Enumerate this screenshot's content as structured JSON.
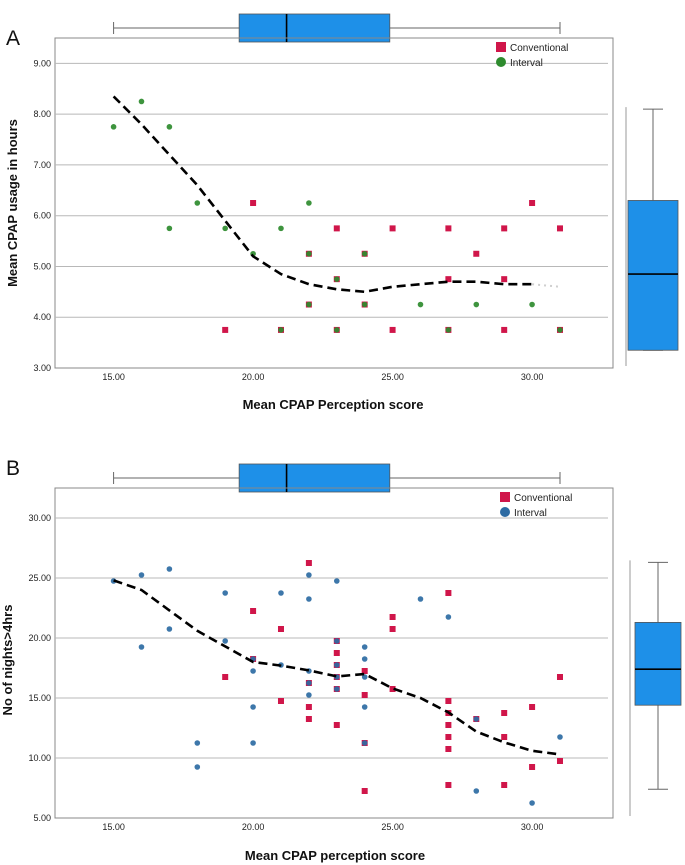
{
  "chart_data": [
    {
      "type": "scatter",
      "panel": "A",
      "xlabel": "Mean CPAP Perception score",
      "ylabel": "Mean CPAP usage in hours",
      "xlim": [
        12.9,
        32.9
      ],
      "ylim": [
        3.0,
        9.5
      ],
      "xticks": [
        "15.00",
        "20.00",
        "25.00",
        "30.00"
      ],
      "yticks": [
        "3.00",
        "4.00",
        "5.00",
        "6.00",
        "7.00",
        "8.00",
        "9.00"
      ],
      "grid": "horizontal",
      "legend_position": "top-right",
      "colors": {
        "Conventional": "#d0164a",
        "Interval": "#2e8b2e",
        "fit": "#000000",
        "box": "#1e90e8"
      },
      "series": [
        {
          "name": "Conventional",
          "marker": "square",
          "points": [
            [
              19,
              3.75
            ],
            [
              20,
              6.25
            ],
            [
              21,
              3.75
            ],
            [
              22,
              4.25
            ],
            [
              22,
              5.25
            ],
            [
              23,
              3.75
            ],
            [
              23,
              4.75
            ],
            [
              23,
              5.75
            ],
            [
              24,
              4.25
            ],
            [
              24,
              5.25
            ],
            [
              25,
              3.75
            ],
            [
              25,
              5.75
            ],
            [
              27,
              3.75
            ],
            [
              27,
              4.75
            ],
            [
              27,
              5.75
            ],
            [
              28,
              5.25
            ],
            [
              29,
              3.75
            ],
            [
              29,
              4.75
            ],
            [
              29,
              5.75
            ],
            [
              30,
              6.25
            ],
            [
              31,
              3.75
            ],
            [
              31,
              5.75
            ]
          ]
        },
        {
          "name": "Interval",
          "marker": "circle",
          "points": [
            [
              15,
              7.75
            ],
            [
              16,
              8.25
            ],
            [
              17,
              7.75
            ],
            [
              17,
              5.75
            ],
            [
              18,
              6.25
            ],
            [
              19,
              5.75
            ],
            [
              20,
              5.25
            ],
            [
              21,
              5.75
            ],
            [
              21,
              3.75
            ],
            [
              22,
              6.25
            ],
            [
              22,
              5.25
            ],
            [
              22,
              4.25
            ],
            [
              23,
              4.75
            ],
            [
              23,
              3.75
            ],
            [
              24,
              5.25
            ],
            [
              24,
              4.25
            ],
            [
              26,
              4.25
            ],
            [
              27,
              3.75
            ],
            [
              28,
              4.25
            ],
            [
              30,
              4.25
            ],
            [
              31,
              3.75
            ]
          ]
        }
      ],
      "fit_line": [
        [
          15,
          8.35
        ],
        [
          16,
          7.8
        ],
        [
          17,
          7.2
        ],
        [
          18,
          6.6
        ],
        [
          19,
          5.9
        ],
        [
          20,
          5.2
        ],
        [
          21,
          4.85
        ],
        [
          22,
          4.65
        ],
        [
          23,
          4.55
        ],
        [
          24,
          4.5
        ],
        [
          25,
          4.6
        ],
        [
          26,
          4.65
        ],
        [
          27,
          4.7
        ],
        [
          28,
          4.7
        ],
        [
          29,
          4.65
        ],
        [
          30,
          4.65
        ]
      ],
      "fit_end": [
        31,
        4.6
      ],
      "x_box": {
        "min": 15,
        "q1": 19.5,
        "median": 21.2,
        "q3": 24.9,
        "max": 31
      },
      "y_box": {
        "min": 3.35,
        "q1": 3.35,
        "median": 4.85,
        "q3": 6.3,
        "max": 8.1
      }
    },
    {
      "type": "scatter",
      "panel": "B",
      "xlabel": "Mean CPAP perception score",
      "ylabel": "No of nights>4hrs",
      "xlim": [
        12.9,
        32.9
      ],
      "ylim": [
        5.0,
        32.5
      ],
      "xticks": [
        "15.00",
        "20.00",
        "25.00",
        "30.00"
      ],
      "yticks": [
        "5.00",
        "10.00",
        "15.00",
        "20.00",
        "25.00",
        "30.00"
      ],
      "grid": "horizontal",
      "legend_position": "top-right",
      "colors": {
        "Conventional": "#d0164a",
        "Interval": "#2d6ba3",
        "fit": "#000000",
        "box": "#1e90e8"
      },
      "series": [
        {
          "name": "Conventional",
          "marker": "square",
          "points": [
            [
              19,
              16.75
            ],
            [
              20,
              22.25
            ],
            [
              20,
              18.25
            ],
            [
              21,
              20.75
            ],
            [
              21,
              14.75
            ],
            [
              22,
              26.25
            ],
            [
              22,
              16.25
            ],
            [
              22,
              14.25
            ],
            [
              22,
              13.25
            ],
            [
              23,
              19.75
            ],
            [
              23,
              18.75
            ],
            [
              23,
              17.75
            ],
            [
              23,
              16.75
            ],
            [
              23,
              15.75
            ],
            [
              23,
              12.75
            ],
            [
              24,
              17.25
            ],
            [
              24,
              15.25
            ],
            [
              24,
              11.25
            ],
            [
              24,
              7.25
            ],
            [
              25,
              21.75
            ],
            [
              25,
              20.75
            ],
            [
              25,
              15.75
            ],
            [
              27,
              23.75
            ],
            [
              27,
              14.75
            ],
            [
              27,
              13.75
            ],
            [
              27,
              12.75
            ],
            [
              27,
              11.75
            ],
            [
              27,
              10.75
            ],
            [
              27,
              7.75
            ],
            [
              28,
              13.25
            ],
            [
              29,
              13.75
            ],
            [
              29,
              11.75
            ],
            [
              29,
              7.75
            ],
            [
              30,
              14.25
            ],
            [
              30,
              9.25
            ],
            [
              31,
              16.75
            ],
            [
              31,
              9.75
            ]
          ]
        },
        {
          "name": "Interval",
          "marker": "circle",
          "points": [
            [
              15,
              24.75
            ],
            [
              16,
              25.25
            ],
            [
              16,
              19.25
            ],
            [
              17,
              25.75
            ],
            [
              17,
              20.75
            ],
            [
              18,
              11.25
            ],
            [
              18,
              9.25
            ],
            [
              19,
              23.75
            ],
            [
              19,
              19.75
            ],
            [
              20,
              18.25
            ],
            [
              20,
              17.25
            ],
            [
              20,
              14.25
            ],
            [
              20,
              11.25
            ],
            [
              21,
              23.75
            ],
            [
              21,
              17.75
            ],
            [
              22,
              25.25
            ],
            [
              22,
              23.25
            ],
            [
              22,
              17.25
            ],
            [
              22,
              16.25
            ],
            [
              22,
              15.25
            ],
            [
              23,
              24.75
            ],
            [
              23,
              19.75
            ],
            [
              23,
              17.75
            ],
            [
              23,
              16.75
            ],
            [
              23,
              15.75
            ],
            [
              24,
              19.25
            ],
            [
              24,
              18.25
            ],
            [
              24,
              16.75
            ],
            [
              24,
              14.25
            ],
            [
              24,
              11.25
            ],
            [
              26,
              23.25
            ],
            [
              27,
              21.75
            ],
            [
              28,
              13.25
            ],
            [
              28,
              7.25
            ],
            [
              30,
              6.25
            ],
            [
              31,
              11.75
            ]
          ]
        }
      ],
      "fit_line": [
        [
          15,
          24.8
        ],
        [
          16,
          24.0
        ],
        [
          17,
          22.3
        ],
        [
          18,
          20.6
        ],
        [
          19,
          19.3
        ],
        [
          20,
          18.0
        ],
        [
          21,
          17.7
        ],
        [
          22,
          17.3
        ],
        [
          23,
          16.8
        ],
        [
          24,
          17.0
        ],
        [
          25,
          15.8
        ],
        [
          26,
          15.0
        ],
        [
          27,
          13.8
        ],
        [
          28,
          12.2
        ],
        [
          29,
          11.3
        ],
        [
          30,
          10.6
        ],
        [
          31,
          10.3
        ]
      ],
      "fit_end": [
        31,
        10.3
      ],
      "x_box": {
        "min": 15,
        "q1": 19.5,
        "median": 21.2,
        "q3": 24.9,
        "max": 31
      },
      "y_box": {
        "min": 7.4,
        "q1": 14.4,
        "median": 17.4,
        "q3": 21.3,
        "max": 26.3
      }
    }
  ]
}
